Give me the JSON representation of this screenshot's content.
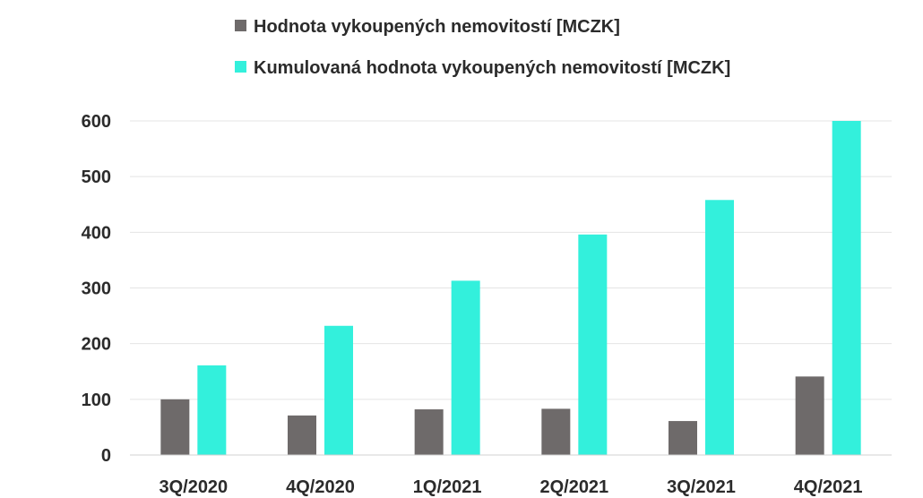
{
  "chart_data": {
    "type": "bar",
    "categories": [
      "3Q/2020",
      "4Q/2020",
      "1Q/2021",
      "2Q/2021",
      "3Q/2021",
      "4Q/2021"
    ],
    "series": [
      {
        "name": "Hodnota vykoupených nemovitostí [MCZK]",
        "color": "#6e6a6a",
        "values": [
          100,
          71,
          82,
          83,
          61,
          141
        ]
      },
      {
        "name": "Kumulovaná hodnota vykoupených nemovitostí [MCZK]",
        "color": "#33f0dc",
        "values": [
          161,
          232,
          313,
          396,
          458,
          600
        ]
      }
    ],
    "ylim": [
      0,
      600
    ],
    "yticks": [
      0,
      100,
      200,
      300,
      400,
      500,
      600
    ],
    "grid": true,
    "legend_position": "top"
  }
}
